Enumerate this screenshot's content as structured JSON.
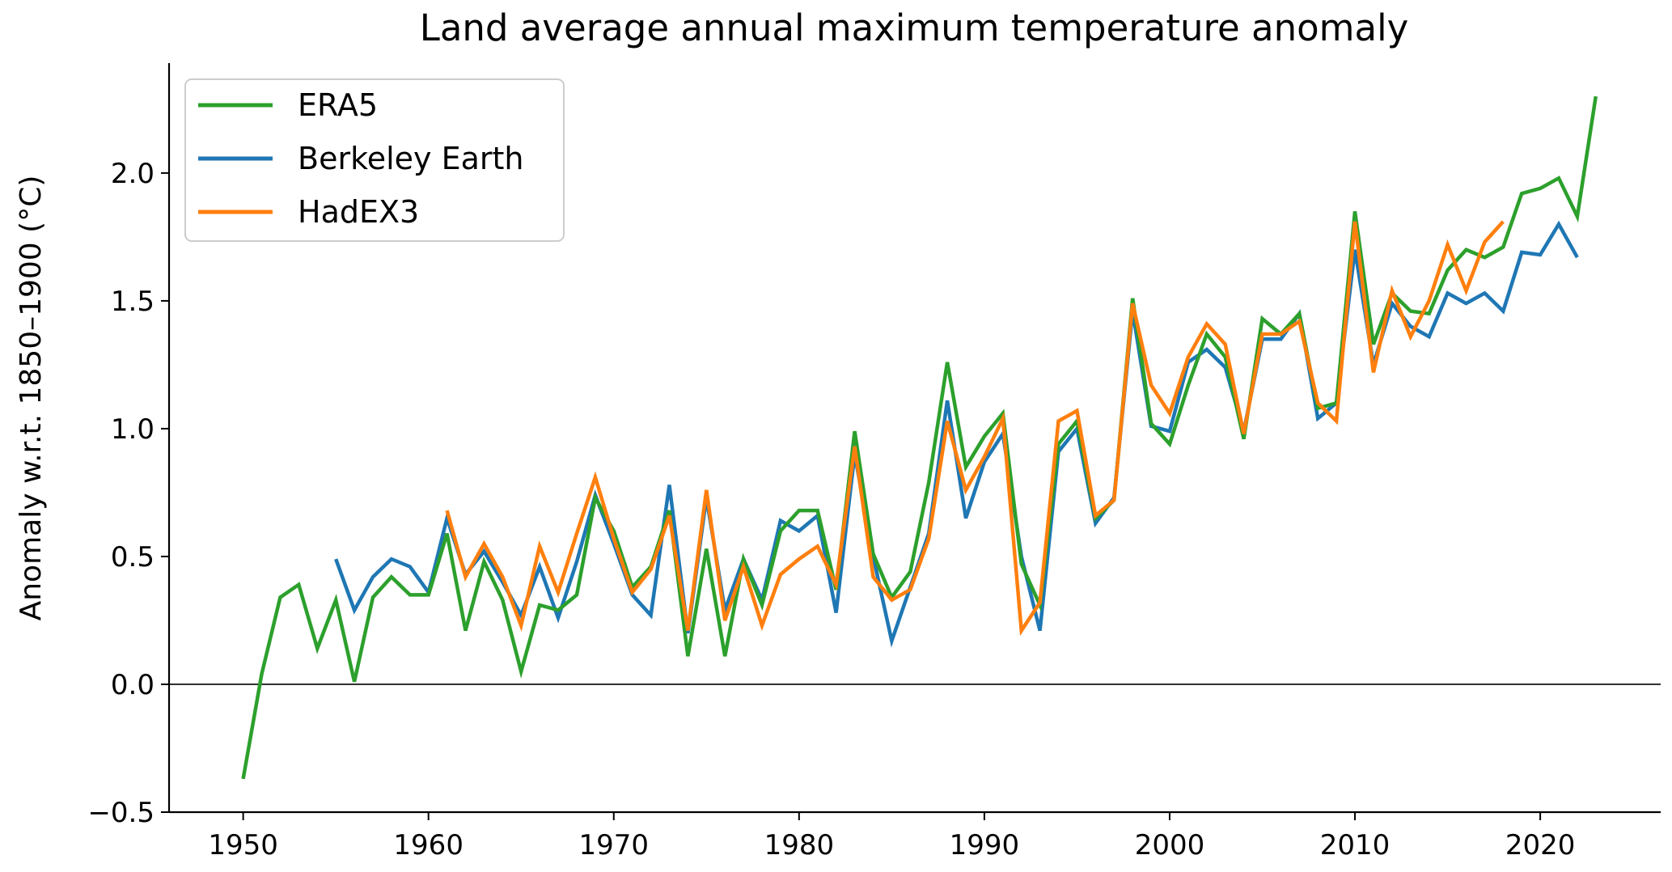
{
  "chart_data": {
    "type": "line",
    "title": "Land average annual maximum temperature anomaly",
    "xlabel": "",
    "ylabel": "Anomaly w.r.t. 1850–1900 (°C)",
    "xlim": [
      1946,
      2026.5
    ],
    "ylim": [
      -0.5,
      2.43
    ],
    "xticks": [
      1950,
      1960,
      1970,
      1980,
      1990,
      2000,
      2010,
      2020
    ],
    "xtick_labels": [
      "1950",
      "1960",
      "1970",
      "1980",
      "1990",
      "2000",
      "2010",
      "2020"
    ],
    "yticks": [
      -0.5,
      0.0,
      0.5,
      1.0,
      1.5,
      2.0
    ],
    "ytick_labels": [
      "−0.5",
      "0.0",
      "0.5",
      "1.0",
      "1.5",
      "2.0"
    ],
    "zero_line": true,
    "grid": false,
    "legend_position": "top-left",
    "series": [
      {
        "name": "ERA5",
        "color": "#2ca02c",
        "x": [
          1950,
          1951,
          1952,
          1953,
          1954,
          1955,
          1956,
          1957,
          1958,
          1959,
          1960,
          1961,
          1962,
          1963,
          1964,
          1965,
          1966,
          1967,
          1968,
          1969,
          1970,
          1971,
          1972,
          1973,
          1974,
          1975,
          1976,
          1977,
          1978,
          1979,
          1980,
          1981,
          1982,
          1983,
          1984,
          1985,
          1986,
          1987,
          1988,
          1989,
          1990,
          1991,
          1992,
          1993,
          1994,
          1995,
          1996,
          1997,
          1998,
          1999,
          2000,
          2001,
          2002,
          2003,
          2004,
          2005,
          2006,
          2007,
          2008,
          2009,
          2010,
          2011,
          2012,
          2013,
          2014,
          2015,
          2016,
          2017,
          2018,
          2019,
          2020,
          2021,
          2022,
          2023
        ],
        "values": [
          -0.37,
          0.04,
          0.34,
          0.39,
          0.14,
          0.33,
          0.01,
          0.34,
          0.42,
          0.35,
          0.35,
          0.59,
          0.21,
          0.48,
          0.33,
          0.05,
          0.31,
          0.29,
          0.35,
          0.73,
          0.6,
          0.38,
          0.46,
          0.68,
          0.11,
          0.53,
          0.11,
          0.49,
          0.31,
          0.6,
          0.68,
          0.68,
          0.37,
          0.99,
          0.51,
          0.34,
          0.44,
          0.79,
          1.26,
          0.85,
          0.97,
          1.06,
          0.47,
          0.31,
          0.94,
          1.03,
          0.65,
          0.72,
          1.51,
          1.02,
          0.94,
          1.17,
          1.37,
          1.28,
          0.96,
          1.43,
          1.37,
          1.45,
          1.08,
          1.1,
          1.85,
          1.33,
          1.53,
          1.46,
          1.45,
          1.62,
          1.7,
          1.67,
          1.71,
          1.92,
          1.94,
          1.98,
          1.83,
          2.3
        ]
      },
      {
        "name": "Berkeley Earth",
        "color": "#1f77b4",
        "x": [
          1955,
          1956,
          1957,
          1958,
          1959,
          1960,
          1961,
          1962,
          1963,
          1964,
          1965,
          1966,
          1967,
          1968,
          1969,
          1970,
          1971,
          1972,
          1973,
          1974,
          1975,
          1976,
          1977,
          1978,
          1979,
          1980,
          1981,
          1982,
          1983,
          1984,
          1985,
          1986,
          1987,
          1988,
          1989,
          1990,
          1991,
          1992,
          1993,
          1994,
          1995,
          1996,
          1997,
          1998,
          1999,
          2000,
          2001,
          2002,
          2003,
          2004,
          2005,
          2006,
          2007,
          2008,
          2009,
          2010,
          2011,
          2012,
          2013,
          2014,
          2015,
          2016,
          2017,
          2018,
          2019,
          2020,
          2021,
          2022
        ],
        "values": [
          0.49,
          0.29,
          0.42,
          0.49,
          0.46,
          0.36,
          0.65,
          0.43,
          0.52,
          0.4,
          0.27,
          0.46,
          0.26,
          0.48,
          0.74,
          0.55,
          0.35,
          0.27,
          0.78,
          0.2,
          0.73,
          0.29,
          0.49,
          0.33,
          0.64,
          0.6,
          0.66,
          0.28,
          0.9,
          0.5,
          0.17,
          0.38,
          0.59,
          1.11,
          0.65,
          0.87,
          0.98,
          0.5,
          0.21,
          0.91,
          1.0,
          0.63,
          0.73,
          1.46,
          1.01,
          0.99,
          1.26,
          1.31,
          1.24,
          0.99,
          1.35,
          1.35,
          1.45,
          1.04,
          1.1,
          1.7,
          1.25,
          1.49,
          1.4,
          1.36,
          1.53,
          1.49,
          1.53,
          1.46,
          1.69,
          1.68,
          1.8,
          1.67
        ]
      },
      {
        "name": "HadEX3",
        "color": "#ff7f0e",
        "x": [
          1961,
          1962,
          1963,
          1964,
          1965,
          1966,
          1967,
          1968,
          1969,
          1970,
          1971,
          1972,
          1973,
          1974,
          1975,
          1976,
          1977,
          1978,
          1979,
          1980,
          1981,
          1982,
          1983,
          1984,
          1985,
          1986,
          1987,
          1988,
          1989,
          1990,
          1991,
          1992,
          1993,
          1994,
          1995,
          1996,
          1997,
          1998,
          1999,
          2000,
          2001,
          2002,
          2003,
          2004,
          2005,
          2006,
          2007,
          2008,
          2009,
          2010,
          2011,
          2012,
          2013,
          2014,
          2015,
          2016,
          2017,
          2018
        ],
        "values": [
          0.68,
          0.42,
          0.55,
          0.42,
          0.23,
          0.54,
          0.36,
          0.59,
          0.81,
          0.57,
          0.36,
          0.45,
          0.66,
          0.21,
          0.76,
          0.25,
          0.46,
          0.23,
          0.43,
          0.49,
          0.54,
          0.39,
          0.93,
          0.42,
          0.33,
          0.37,
          0.57,
          1.03,
          0.76,
          0.89,
          1.04,
          0.21,
          0.32,
          1.03,
          1.07,
          0.66,
          0.72,
          1.49,
          1.17,
          1.06,
          1.28,
          1.41,
          1.33,
          0.98,
          1.37,
          1.37,
          1.42,
          1.1,
          1.03,
          1.81,
          1.22,
          1.54,
          1.36,
          1.5,
          1.72,
          1.54,
          1.73,
          1.81
        ]
      }
    ]
  }
}
